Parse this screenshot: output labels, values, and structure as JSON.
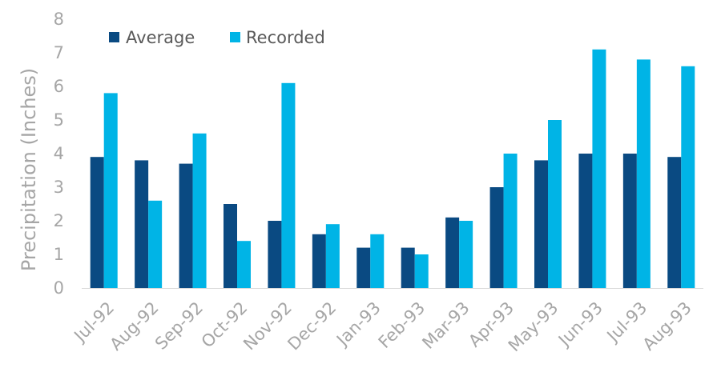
{
  "chart_data": {
    "type": "bar",
    "title": "",
    "xlabel": "",
    "ylabel": "Precipitation (Inches)",
    "ylim": [
      0,
      8
    ],
    "yticks": [
      0,
      1,
      2,
      3,
      4,
      5,
      6,
      7,
      8
    ],
    "grid": false,
    "legend": "top-left",
    "categories": [
      "Jul-92",
      "Aug-92",
      "Sep-92",
      "Oct-92",
      "Nov-92",
      "Dec-92",
      "Jan-93",
      "Feb-93",
      "Mar-93",
      "Apr-93",
      "May-93",
      "Jun-93",
      "Jul-93",
      "Aug-93"
    ],
    "series": [
      {
        "name": "Average",
        "color": "#0a4a82",
        "values": [
          3.9,
          3.8,
          3.7,
          2.5,
          2.0,
          1.6,
          1.2,
          1.2,
          2.1,
          3.0,
          3.8,
          4.0,
          4.0,
          3.9
        ]
      },
      {
        "name": "Recorded",
        "color": "#00b4e6",
        "values": [
          5.8,
          2.6,
          4.6,
          1.4,
          6.1,
          1.9,
          1.6,
          1.0,
          2.0,
          4.0,
          5.0,
          7.1,
          6.8,
          6.6
        ]
      }
    ]
  }
}
